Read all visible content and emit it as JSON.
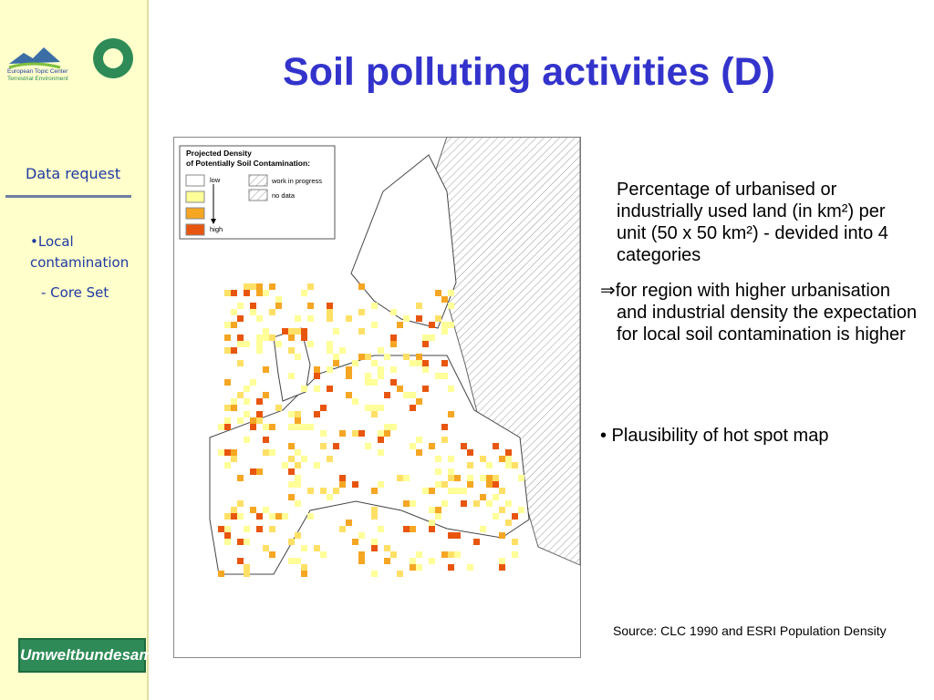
{
  "sidebar": {
    "logo_text": [
      "European Topic Center",
      "Terrestrial Environment"
    ],
    "section": "Data request",
    "items": [
      "•Local contamination",
      "- Core Set"
    ],
    "footer_logo": "Umweltbundesamt"
  },
  "title": "Soil polluting activities (D)",
  "map": {
    "legend": {
      "title": [
        "Projected Density",
        "of Potentially Soil Contamination:"
      ],
      "items": [
        "low",
        "high",
        "work in progress",
        "no data"
      ]
    }
  },
  "body": {
    "paragraphs": [
      "Percentage of urbanised or industrially used land (in km²) per unit (50 x 50 km²) - devided into 4 categories",
      "⇒for region with higher urbanisation and industrial density the expectation for local soil contamination is higher",
      "• Plausibility of hot spot map"
    ],
    "source": "Source: CLC 1990 and ESRI Population Density"
  }
}
